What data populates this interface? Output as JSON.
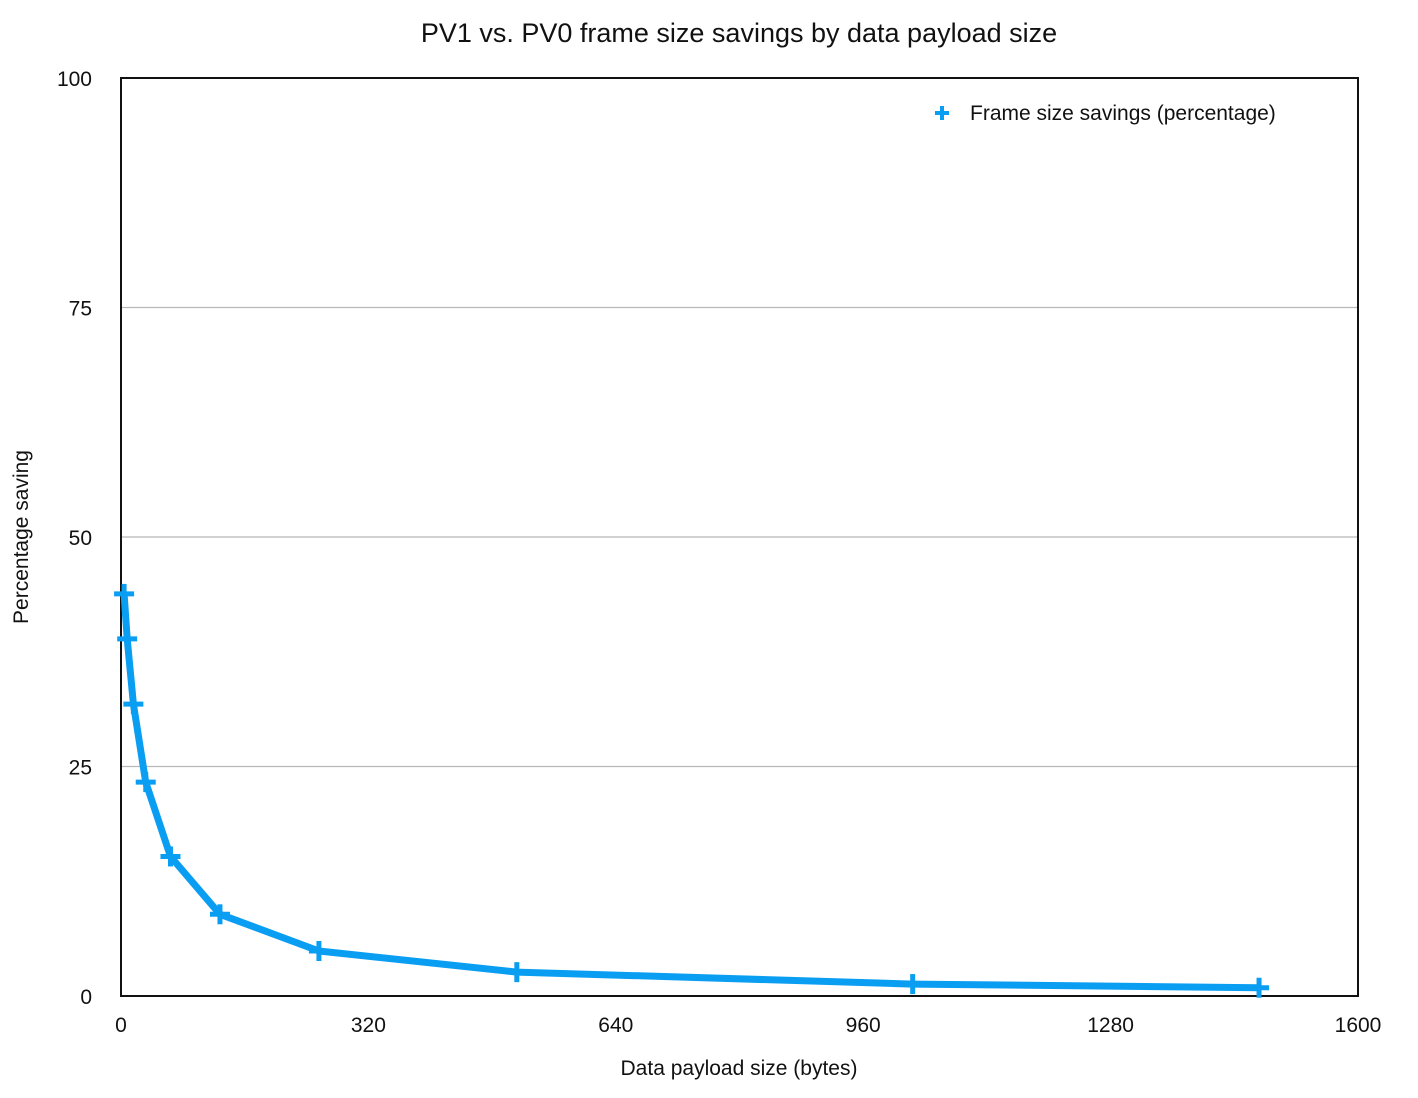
{
  "chart_data": {
    "type": "line",
    "title": "PV1 vs. PV0 frame size savings by data payload size",
    "xlabel": "Data payload size (bytes)",
    "ylabel": "Percentage saving",
    "xlim": [
      0,
      1600
    ],
    "ylim": [
      0,
      100
    ],
    "x_ticks": [
      "0",
      "320",
      "640",
      "960",
      "1280",
      "1600"
    ],
    "y_ticks": [
      "0",
      "25",
      "50",
      "75",
      "100"
    ],
    "grid": "horizontal",
    "legend_position": "top-right",
    "series": [
      {
        "name": "Frame size savings (percentage)",
        "color": "#0a9ef2",
        "marker": "plus",
        "x": [
          4,
          8,
          16,
          32,
          64,
          128,
          256,
          512,
          1024,
          1472
        ],
        "y": [
          43.8,
          38.9,
          31.8,
          23.3,
          15.2,
          8.9,
          4.9,
          2.6,
          1.3,
          0.9
        ]
      }
    ]
  }
}
